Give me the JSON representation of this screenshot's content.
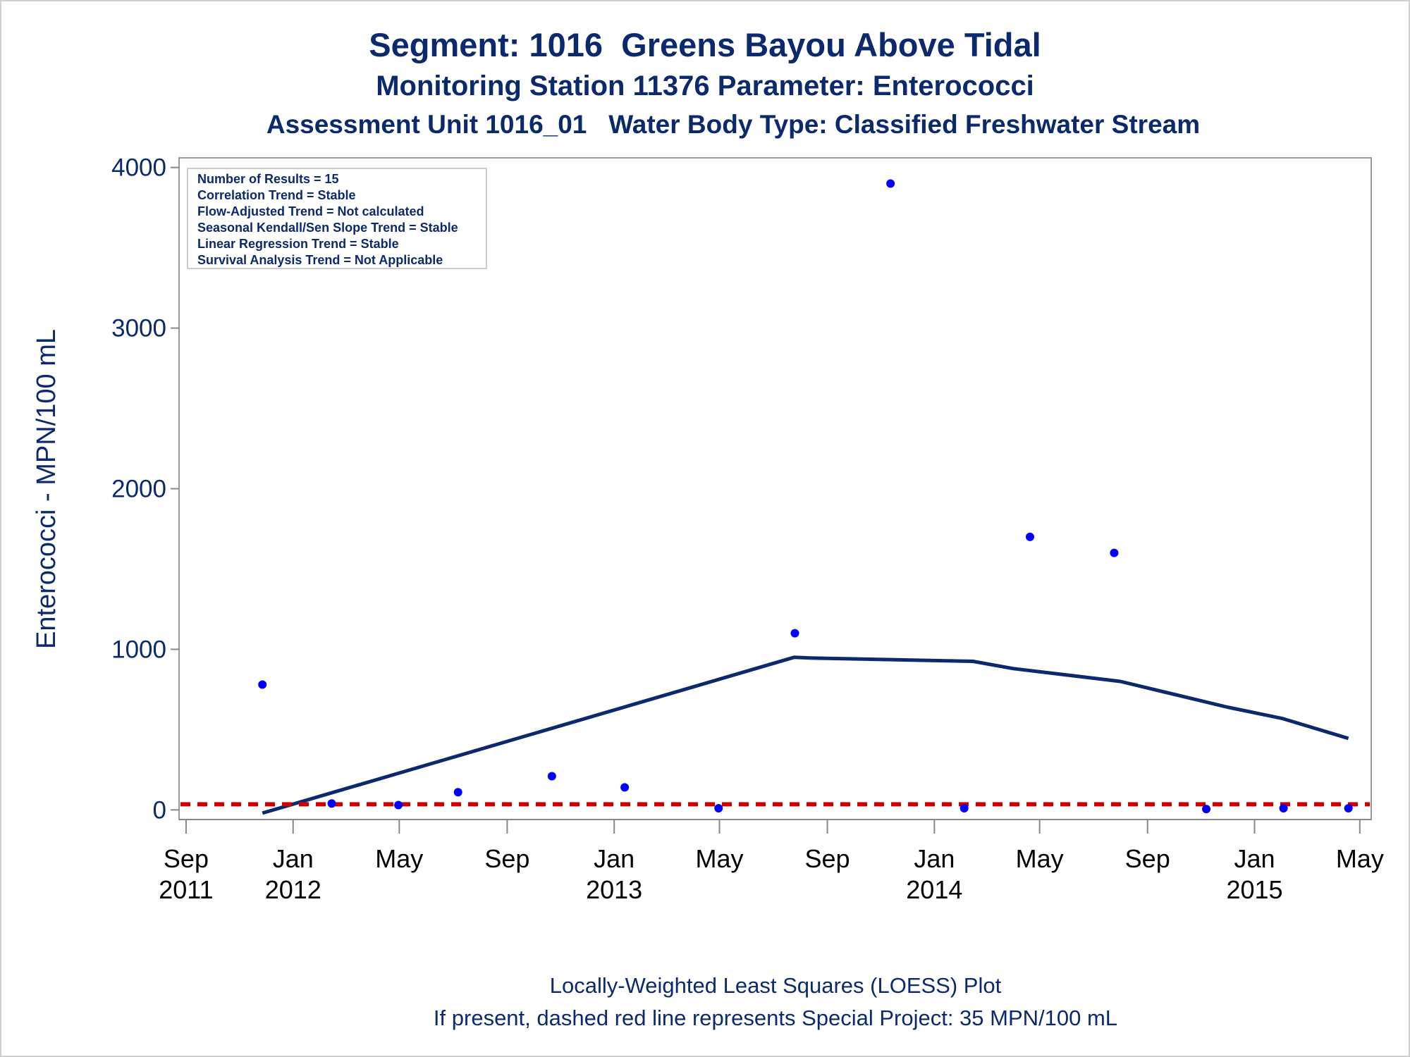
{
  "titles": {
    "line1": "Segment: 1016  Greens Bayou Above Tidal",
    "line2": "Monitoring Station 11376 Parameter: Enterococci",
    "line3": "Assessment Unit 1016_01   Water Body Type: Classified Freshwater Stream"
  },
  "footnotes": {
    "line1": "Locally-Weighted Least Squares (LOESS) Plot",
    "line2": "If present, dashed red line represents Special Project: 35 MPN/100 mL"
  },
  "info_box": [
    "Number of Results = 15",
    "Correlation Trend = Stable",
    "Flow-Adjusted Trend = Not calculated",
    "Seasonal Kendall/Sen Slope Trend = Stable",
    "Linear Regression Trend = Stable",
    "Survival Analysis Trend = Not Applicable"
  ],
  "colors": {
    "text": "#0b2a6e",
    "points": "#0000ff",
    "loess": "#0b2a6e",
    "reference": "#cc0000",
    "axis": "#888888"
  },
  "chart_data": {
    "type": "scatter",
    "title": "Segment: 1016  Greens Bayou Above Tidal",
    "xlabel": "",
    "ylabel": "Enterococci - MPN/100 mL",
    "xlim": [
      "2011-08-24",
      "2015-05-14"
    ],
    "ylim": [
      -60,
      4060
    ],
    "grid": false,
    "x_ticks": [
      {
        "date": "2011-09-01",
        "label": [
          "Sep",
          "2011"
        ]
      },
      {
        "date": "2012-01-01",
        "label": [
          "Jan",
          "2012"
        ]
      },
      {
        "date": "2012-05-01",
        "label": [
          "May",
          ""
        ]
      },
      {
        "date": "2012-09-01",
        "label": [
          "Sep",
          ""
        ]
      },
      {
        "date": "2013-01-01",
        "label": [
          "Jan",
          "2013"
        ]
      },
      {
        "date": "2013-05-01",
        "label": [
          "May",
          ""
        ]
      },
      {
        "date": "2013-09-01",
        "label": [
          "Sep",
          ""
        ]
      },
      {
        "date": "2014-01-01",
        "label": [
          "Jan",
          "2014"
        ]
      },
      {
        "date": "2014-05-01",
        "label": [
          "May",
          ""
        ]
      },
      {
        "date": "2014-09-01",
        "label": [
          "Sep",
          ""
        ]
      },
      {
        "date": "2015-01-01",
        "label": [
          "Jan",
          "2015"
        ]
      },
      {
        "date": "2015-05-01",
        "label": [
          "May",
          ""
        ]
      }
    ],
    "y_ticks": [
      0,
      1000,
      2000,
      3000,
      4000
    ],
    "series": [
      {
        "type": "scatter",
        "points": [
          {
            "x": "2011-11-27",
            "y": 780
          },
          {
            "x": "2012-02-14",
            "y": 40
          },
          {
            "x": "2012-04-30",
            "y": 30
          },
          {
            "x": "2012-07-07",
            "y": 110
          },
          {
            "x": "2012-10-22",
            "y": 210
          },
          {
            "x": "2013-01-13",
            "y": 140
          },
          {
            "x": "2013-04-30",
            "y": 10
          },
          {
            "x": "2013-07-26",
            "y": 1100
          },
          {
            "x": "2013-11-12",
            "y": 3900
          },
          {
            "x": "2014-02-04",
            "y": 10
          },
          {
            "x": "2014-04-20",
            "y": 1700
          },
          {
            "x": "2014-07-25",
            "y": 1600
          },
          {
            "x": "2014-11-07",
            "y": 5
          },
          {
            "x": "2015-02-03",
            "y": 10
          },
          {
            "x": "2015-04-18",
            "y": 10
          }
        ]
      },
      {
        "type": "line",
        "points": [
          {
            "x": "2011-11-27",
            "y": -20
          },
          {
            "x": "2013-07-25",
            "y": 950
          },
          {
            "x": "2013-08-16",
            "y": 945
          },
          {
            "x": "2014-02-14",
            "y": 925
          },
          {
            "x": "2014-04-01",
            "y": 880
          },
          {
            "x": "2014-08-01",
            "y": 800
          },
          {
            "x": "2014-12-01",
            "y": 640
          },
          {
            "x": "2015-02-01",
            "y": 570
          },
          {
            "x": "2015-04-18",
            "y": 445
          }
        ]
      },
      {
        "type": "reference",
        "y": 35
      }
    ]
  }
}
